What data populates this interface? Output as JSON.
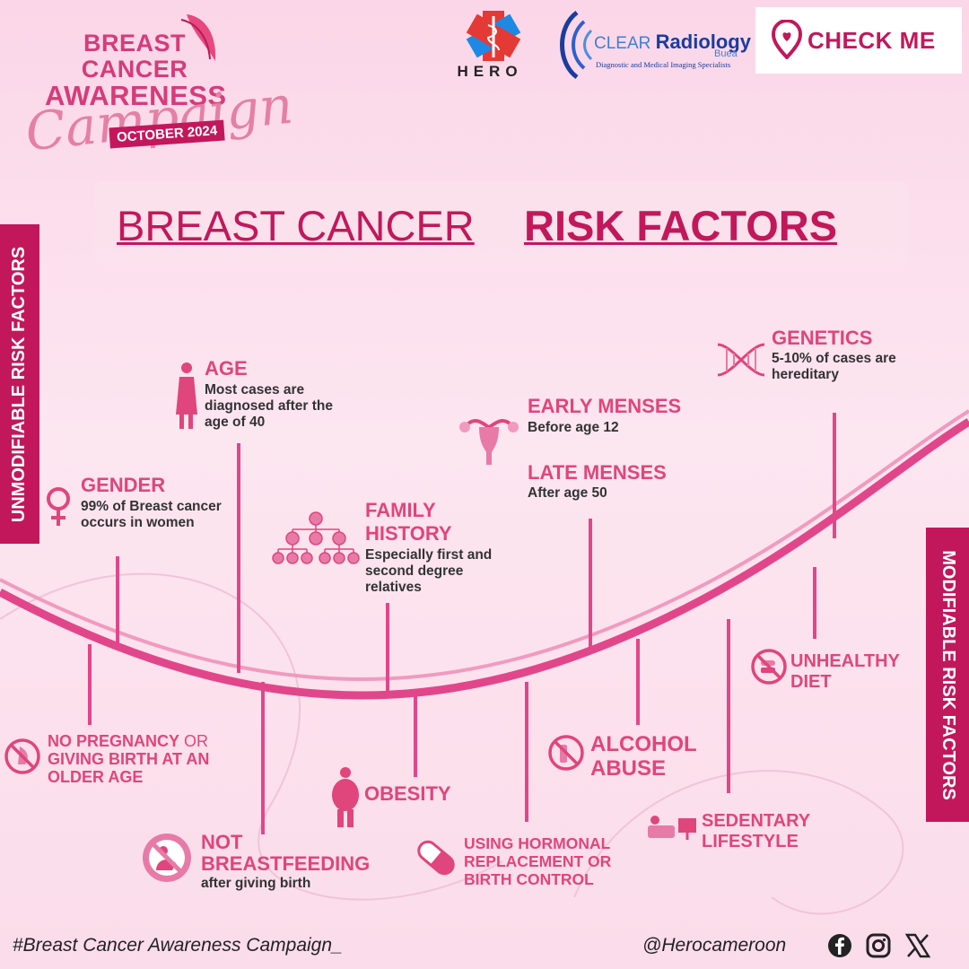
{
  "campaign": {
    "title_line1": "BREAST CANCER",
    "title_line2": "AWARENESS",
    "script": "Campaign",
    "date": "OCTOBER 2024"
  },
  "sponsors": {
    "hero": "HERO",
    "clear_radiology": {
      "clear": "CLEAR",
      "radiology": "Radiology",
      "city": "Buea",
      "tagline": "Diagnostic and Medical Imaging Specialists"
    },
    "checkme": "CHECK ME"
  },
  "title": {
    "light": "BREAST CANCER",
    "bold": "RISK FACTORS"
  },
  "tabs": {
    "unmodifiable": "UNMODIFIABLE RISK FACTORS",
    "modifiable": "MODIFIABLE RISK FACTORS"
  },
  "unmodifiable": {
    "gender": {
      "title": "GENDER",
      "desc": "99% of Breast cancer occurs in women"
    },
    "age": {
      "title": "AGE",
      "desc": "Most cases are diagnosed after the age of 40"
    },
    "family": {
      "title_1": "FAMILY",
      "title_2": "HISTORY",
      "desc": "Especially first and second degree relatives"
    },
    "early_menses": {
      "title": "EARLY MENSES",
      "desc": "Before age 12"
    },
    "late_menses": {
      "title": "LATE MENSES",
      "desc": "After age 50"
    },
    "genetics": {
      "title": "GENETICS",
      "desc": "5-10% of cases are hereditary"
    }
  },
  "modifiable": {
    "no_pregnancy": {
      "line1_a": "NO PREGNANCY",
      "line1_b": " OR",
      "line2": "GIVING BIRTH AT AN",
      "line3": "OLDER AGE"
    },
    "not_breastfeeding": {
      "title_1": "NOT",
      "title_2": "BREASTFEEDING",
      "desc": "after giving birth"
    },
    "obesity": {
      "title": "OBESITY"
    },
    "hormonal": {
      "line1": "USING HORMONAL",
      "line2": "REPLACEMENT OR",
      "line3": "BIRTH CONTROL"
    },
    "alcohol": {
      "line1": "ALCOHOL",
      "line2": "ABUSE"
    },
    "sedentary": {
      "line1": "SEDENTARY",
      "line2": "LIFESTYLE"
    },
    "diet": {
      "line1": "UNHEALTHY",
      "line2": "DIET"
    }
  },
  "footer": {
    "hashtag": "#Breast Cancer Awareness Campaign_",
    "handle": "@Herocameroon"
  },
  "colors": {
    "primary": "#c2185b",
    "accent": "#e0457b",
    "curve": "#e2468a"
  }
}
